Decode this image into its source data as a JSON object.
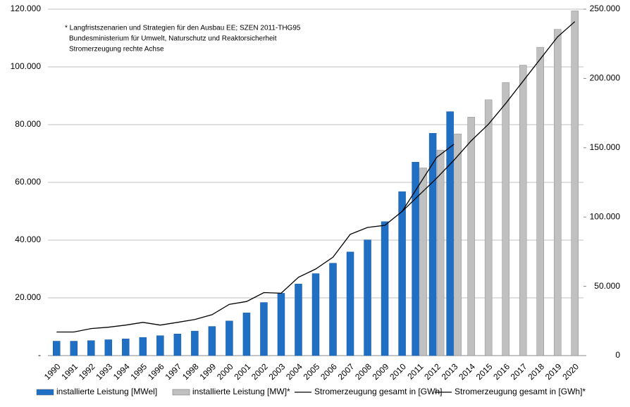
{
  "chart_data": {
    "type": "bar_line",
    "annotation": [
      "* Langfristszenarien und Strategien für den Ausbau EE; SZEN 2011-THG95",
      "Bundesministerium für Umwelt, Naturschutz und Reaktorsicherheit",
      "Stromerzeugung rechte Achse"
    ],
    "categories": [
      "1990",
      "1991",
      "1992",
      "1993",
      "1994",
      "1995",
      "1996",
      "1997",
      "1998",
      "1999",
      "2000",
      "2001",
      "2002",
      "2003",
      "2004",
      "2005",
      "2006",
      "2007",
      "2008",
      "2009",
      "2010",
      "2011",
      "2012",
      "2013",
      "2014",
      "2015",
      "2016",
      "2017",
      "2018",
      "2019",
      "2020"
    ],
    "series": [
      {
        "name": "installierte Leistung [MWel]",
        "kind": "bar",
        "color": "#1f6fc5",
        "values": [
          5000,
          5000,
          5200,
          5500,
          5800,
          6300,
          6900,
          7500,
          8500,
          10100,
          12000,
          14800,
          18400,
          21600,
          24800,
          28400,
          32000,
          35900,
          40100,
          46400,
          56800,
          67000,
          77000,
          84500,
          null,
          null,
          null,
          null,
          null,
          null,
          null
        ]
      },
      {
        "name": "installierte Leistung [MW]*",
        "kind": "bar",
        "color": "#c0c0c0",
        "values": [
          null,
          null,
          null,
          null,
          null,
          null,
          null,
          null,
          null,
          null,
          null,
          null,
          null,
          null,
          null,
          null,
          null,
          null,
          null,
          null,
          null,
          65000,
          71200,
          76800,
          82600,
          88600,
          94600,
          100600,
          106800,
          113000,
          119400
        ]
      },
      {
        "name": "Stromerzeugung gesamt in [GWh]",
        "kind": "line",
        "color": "#000000",
        "axis": "y2",
        "values": [
          17000,
          17000,
          19500,
          20500,
          22000,
          24000,
          22000,
          24000,
          26000,
          29500,
          37000,
          39000,
          45500,
          45000,
          56500,
          62500,
          71000,
          87500,
          92500,
          94000,
          104000,
          123500,
          143000,
          152500,
          null,
          null,
          null,
          null,
          null,
          null,
          null
        ]
      },
      {
        "name": "Stromerzeugung gesamt in [GWh]*",
        "kind": "line",
        "color": "#000000",
        "axis": "y2",
        "values": [
          null,
          null,
          null,
          null,
          null,
          null,
          null,
          null,
          null,
          null,
          null,
          null,
          null,
          null,
          null,
          null,
          null,
          null,
          null,
          null,
          104000,
          116000,
          128000,
          141000,
          155000,
          167000,
          182000,
          198000,
          214000,
          230000,
          241000
        ]
      }
    ],
    "ylim": [
      0,
      120000
    ],
    "yticks": [
      {
        "value": 0,
        "label": "-"
      },
      {
        "value": 20000,
        "label": "20.000"
      },
      {
        "value": 40000,
        "label": "40.000"
      },
      {
        "value": 60000,
        "label": "60.000"
      },
      {
        "value": 80000,
        "label": "80.000"
      },
      {
        "value": 100000,
        "label": "100.000"
      },
      {
        "value": 120000,
        "label": "120.000"
      }
    ],
    "y2lim": [
      0,
      250000
    ],
    "y2ticks": [
      0,
      {
        "value": 50000,
        "label": "50.000"
      },
      {
        "value": 100000,
        "label": "100.000"
      },
      {
        "value": 150000,
        "label": "150.000"
      },
      {
        "value": 200000,
        "label": "200.000"
      },
      {
        "value": 250000,
        "label": "250.000"
      }
    ],
    "grid": true
  }
}
